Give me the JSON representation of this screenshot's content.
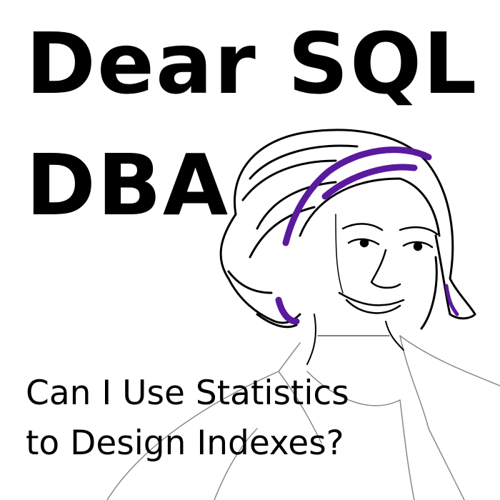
{
  "title_line1": "Dear SQL",
  "title_line2": "DBA",
  "subtitle_line1": "Can I Use Statistics",
  "subtitle_line2": "to Design Indexes?",
  "illustration": "sketch-portrait-woman",
  "colors": {
    "text": "#000000",
    "hair_highlight": "#5a1a9e",
    "background": "#ffffff"
  }
}
